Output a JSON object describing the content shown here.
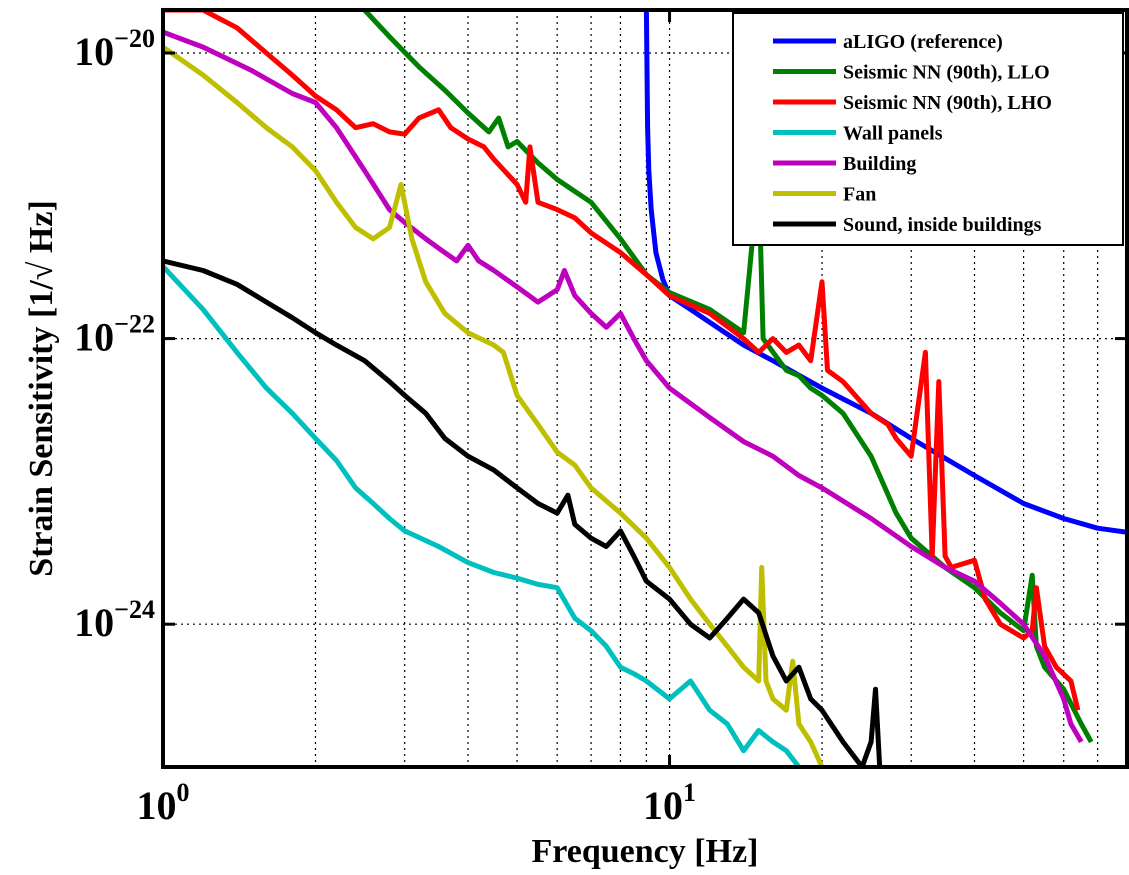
{
  "chart_data": {
    "type": "line",
    "xlabel": "Frequency [Hz]",
    "ylabel": "Strain Sensitivity [1/√ Hz]",
    "xscale": "log",
    "yscale": "log",
    "xlim": [
      1,
      80
    ],
    "ylim": [
      1e-25,
      2e-20
    ],
    "grid": true,
    "legend_position": "top-right",
    "x_ticks": [
      {
        "value": 1,
        "base": "10",
        "exp": "0"
      },
      {
        "value": 10,
        "base": "10",
        "exp": "1"
      }
    ],
    "y_ticks": [
      {
        "value": 1e-20,
        "base": "10",
        "exp": "−20"
      },
      {
        "value": 1e-22,
        "base": "10",
        "exp": "−22"
      },
      {
        "value": 1e-24,
        "base": "10",
        "exp": "−24"
      }
    ],
    "series": [
      {
        "name": "aLIGO (reference)",
        "color": "#0000ff",
        "points": [
          [
            9.0,
            2e-20
          ],
          [
            9.05,
            3e-21
          ],
          [
            9.1,
            1.5e-21
          ],
          [
            9.2,
            8e-22
          ],
          [
            9.4,
            4e-22
          ],
          [
            9.7,
            2.6e-22
          ],
          [
            10,
            2e-22
          ],
          [
            11,
            1.6e-22
          ],
          [
            12,
            1.3e-22
          ],
          [
            14,
            9e-23
          ],
          [
            16,
            7e-23
          ],
          [
            20,
            4.5e-23
          ],
          [
            25,
            3e-23
          ],
          [
            30,
            2e-23
          ],
          [
            40,
            1.1e-23
          ],
          [
            50,
            7e-24
          ],
          [
            60,
            5.5e-24
          ],
          [
            70,
            4.7e-24
          ],
          [
            80,
            4.4e-24
          ]
        ]
      },
      {
        "name": "Seismic NN (90th), LLO",
        "color": "#008000",
        "points": [
          [
            2.5,
            2e-20
          ],
          [
            2.8,
            1.3e-20
          ],
          [
            3.2,
            8e-21
          ],
          [
            3.6,
            5.5e-21
          ],
          [
            4.0,
            3.8e-21
          ],
          [
            4.4,
            2.8e-21
          ],
          [
            4.6,
            3.5e-21
          ],
          [
            4.8,
            2.2e-21
          ],
          [
            5.0,
            2.4e-21
          ],
          [
            5.5,
            1.7e-21
          ],
          [
            6.0,
            1.3e-21
          ],
          [
            7.0,
            9e-22
          ],
          [
            8.0,
            5e-22
          ],
          [
            9.0,
            2.8e-22
          ],
          [
            10,
            2.1e-22
          ],
          [
            12,
            1.6e-22
          ],
          [
            14,
            1.1e-22
          ],
          [
            15,
            1.4e-21
          ],
          [
            15.3,
            1e-22
          ],
          [
            17,
            6e-23
          ],
          [
            18,
            5.5e-23
          ],
          [
            19,
            4.5e-23
          ],
          [
            20,
            4e-23
          ],
          [
            22,
            3e-23
          ],
          [
            25,
            1.5e-23
          ],
          [
            28,
            6e-24
          ],
          [
            30,
            4e-24
          ],
          [
            35,
            2.5e-24
          ],
          [
            40,
            1.8e-24
          ],
          [
            45,
            1.2e-24
          ],
          [
            50,
            9e-25
          ],
          [
            52,
            2.2e-24
          ],
          [
            53,
            7e-25
          ],
          [
            55,
            5e-25
          ],
          [
            60,
            3.5e-25
          ],
          [
            65,
            2e-25
          ],
          [
            68,
            1.5e-25
          ]
        ]
      },
      {
        "name": "Seismic NN (90th), LHO",
        "color": "#ff0000",
        "points": [
          [
            1.0,
            2e-20
          ],
          [
            1.2,
            2e-20
          ],
          [
            1.4,
            1.5e-20
          ],
          [
            1.6,
            1e-20
          ],
          [
            1.8,
            7e-21
          ],
          [
            2.0,
            5e-21
          ],
          [
            2.2,
            4e-21
          ],
          [
            2.4,
            3e-21
          ],
          [
            2.6,
            3.2e-21
          ],
          [
            2.8,
            2.8e-21
          ],
          [
            3.0,
            2.7e-21
          ],
          [
            3.2,
            3.5e-21
          ],
          [
            3.5,
            4e-21
          ],
          [
            3.7,
            3e-21
          ],
          [
            4.0,
            2.5e-21
          ],
          [
            4.3,
            2.2e-21
          ],
          [
            4.5,
            1.8e-21
          ],
          [
            5.0,
            1.2e-21
          ],
          [
            5.2,
            9e-22
          ],
          [
            5.3,
            2.2e-21
          ],
          [
            5.5,
            9e-22
          ],
          [
            6.0,
            8e-22
          ],
          [
            6.5,
            7e-22
          ],
          [
            7.0,
            5.5e-22
          ],
          [
            8.0,
            4e-22
          ],
          [
            9.0,
            2.8e-22
          ],
          [
            10,
            2e-22
          ],
          [
            12,
            1.5e-22
          ],
          [
            14,
            1e-22
          ],
          [
            15,
            8e-23
          ],
          [
            16,
            1e-22
          ],
          [
            17,
            8e-23
          ],
          [
            18,
            9e-23
          ],
          [
            19,
            7e-23
          ],
          [
            20,
            2.5e-22
          ],
          [
            20.5,
            6e-23
          ],
          [
            22,
            5e-23
          ],
          [
            25,
            3e-23
          ],
          [
            27,
            2.5e-23
          ],
          [
            28,
            2e-23
          ],
          [
            30,
            1.5e-23
          ],
          [
            32,
            8e-23
          ],
          [
            33,
            3e-24
          ],
          [
            34,
            5e-23
          ],
          [
            35,
            3e-24
          ],
          [
            36,
            2.5e-24
          ],
          [
            40,
            2.8e-24
          ],
          [
            42,
            1.5e-24
          ],
          [
            45,
            1e-24
          ],
          [
            50,
            8e-25
          ],
          [
            52,
            9e-25
          ],
          [
            53,
            1.8e-24
          ],
          [
            55,
            7e-25
          ],
          [
            58,
            5e-25
          ],
          [
            62,
            4e-25
          ],
          [
            64,
            2.5e-25
          ]
        ]
      },
      {
        "name": "Wall panels",
        "color": "#00bfbf",
        "points": [
          [
            1.0,
            3.2e-22
          ],
          [
            1.2,
            1.6e-22
          ],
          [
            1.4,
            8e-23
          ],
          [
            1.6,
            4.5e-23
          ],
          [
            1.8,
            3e-23
          ],
          [
            2.0,
            2e-23
          ],
          [
            2.2,
            1.4e-23
          ],
          [
            2.4,
            9e-24
          ],
          [
            2.6,
            7e-24
          ],
          [
            2.8,
            5.5e-24
          ],
          [
            3.0,
            4.5e-24
          ],
          [
            3.5,
            3.5e-24
          ],
          [
            4.0,
            2.7e-24
          ],
          [
            4.5,
            2.3e-24
          ],
          [
            5.0,
            2.1e-24
          ],
          [
            5.5,
            1.9e-24
          ],
          [
            6.0,
            1.8e-24
          ],
          [
            6.5,
            1.1e-24
          ],
          [
            7.0,
            9e-25
          ],
          [
            7.5,
            7e-25
          ],
          [
            8.0,
            5e-25
          ],
          [
            8.5,
            4.5e-25
          ],
          [
            9.0,
            4e-25
          ],
          [
            10,
            3e-25
          ],
          [
            11,
            4e-25
          ],
          [
            12,
            2.5e-25
          ],
          [
            13,
            2e-25
          ],
          [
            14,
            1.3e-25
          ],
          [
            15,
            1.8e-25
          ],
          [
            16,
            1.5e-25
          ],
          [
            17,
            1.3e-25
          ],
          [
            18,
            1e-25
          ]
        ]
      },
      {
        "name": "Building",
        "color": "#bf00bf",
        "points": [
          [
            1.0,
            1.4e-20
          ],
          [
            1.2,
            1.1e-20
          ],
          [
            1.5,
            7.5e-21
          ],
          [
            1.8,
            5.2e-21
          ],
          [
            2.0,
            4.5e-21
          ],
          [
            2.2,
            3e-21
          ],
          [
            2.5,
            1.5e-21
          ],
          [
            2.8,
            8e-22
          ],
          [
            3.0,
            6.5e-22
          ],
          [
            3.3,
            5e-22
          ],
          [
            3.6,
            4e-22
          ],
          [
            3.8,
            3.5e-22
          ],
          [
            4.0,
            4.5e-22
          ],
          [
            4.2,
            3.5e-22
          ],
          [
            4.5,
            3e-22
          ],
          [
            5.0,
            2.3e-22
          ],
          [
            5.5,
            1.8e-22
          ],
          [
            6.0,
            2.2e-22
          ],
          [
            6.2,
            3e-22
          ],
          [
            6.5,
            2e-22
          ],
          [
            7.0,
            1.5e-22
          ],
          [
            7.5,
            1.2e-22
          ],
          [
            8.0,
            1.5e-22
          ],
          [
            8.5,
            1e-22
          ],
          [
            9.0,
            7e-23
          ],
          [
            10,
            4.5e-23
          ],
          [
            12,
            2.8e-23
          ],
          [
            14,
            1.9e-23
          ],
          [
            16,
            1.5e-23
          ],
          [
            18,
            1.1e-23
          ],
          [
            20,
            9e-24
          ],
          [
            25,
            5.5e-24
          ],
          [
            30,
            3.5e-24
          ],
          [
            35,
            2.5e-24
          ],
          [
            40,
            2e-24
          ],
          [
            45,
            1.4e-24
          ],
          [
            50,
            1e-24
          ],
          [
            55,
            6e-25
          ],
          [
            60,
            3e-25
          ],
          [
            62,
            2e-25
          ],
          [
            65,
            1.5e-25
          ]
        ]
      },
      {
        "name": "Fan",
        "color": "#bfbf00",
        "points": [
          [
            1.0,
            1.1e-20
          ],
          [
            1.2,
            7e-21
          ],
          [
            1.4,
            4.5e-21
          ],
          [
            1.6,
            3e-21
          ],
          [
            1.8,
            2.2e-21
          ],
          [
            2.0,
            1.5e-21
          ],
          [
            2.2,
            9e-22
          ],
          [
            2.4,
            6e-22
          ],
          [
            2.6,
            5e-22
          ],
          [
            2.8,
            6e-22
          ],
          [
            2.95,
            1.2e-21
          ],
          [
            3.1,
            5e-22
          ],
          [
            3.3,
            2.5e-22
          ],
          [
            3.6,
            1.5e-22
          ],
          [
            4.0,
            1.1e-22
          ],
          [
            4.5,
            9e-23
          ],
          [
            4.7,
            8e-23
          ],
          [
            5.0,
            4e-23
          ],
          [
            5.5,
            2.5e-23
          ],
          [
            6.0,
            1.6e-23
          ],
          [
            6.5,
            1.3e-23
          ],
          [
            7.0,
            9e-24
          ],
          [
            8.0,
            6e-24
          ],
          [
            9.0,
            4e-24
          ],
          [
            10,
            2.5e-24
          ],
          [
            11,
            1.5e-24
          ],
          [
            12,
            1e-24
          ],
          [
            13,
            7e-25
          ],
          [
            14,
            5e-25
          ],
          [
            15,
            4e-25
          ],
          [
            15.2,
            2.5e-24
          ],
          [
            15.5,
            4e-25
          ],
          [
            16,
            3e-25
          ],
          [
            17,
            2.5e-25
          ],
          [
            17.5,
            5.5e-25
          ],
          [
            18,
            2e-25
          ],
          [
            19,
            1.5e-25
          ],
          [
            20,
            1e-25
          ]
        ]
      },
      {
        "name": "Sound, inside buildings",
        "color": "#000000",
        "points": [
          [
            1.0,
            3.5e-22
          ],
          [
            1.2,
            3e-22
          ],
          [
            1.4,
            2.4e-22
          ],
          [
            1.6,
            1.8e-22
          ],
          [
            1.8,
            1.4e-22
          ],
          [
            2.0,
            1.1e-22
          ],
          [
            2.2,
            9e-23
          ],
          [
            2.5,
            7e-23
          ],
          [
            2.8,
            5e-23
          ],
          [
            3.0,
            4e-23
          ],
          [
            3.3,
            3e-23
          ],
          [
            3.6,
            2e-23
          ],
          [
            4.0,
            1.5e-23
          ],
          [
            4.5,
            1.2e-23
          ],
          [
            5.0,
            9e-24
          ],
          [
            5.5,
            7e-24
          ],
          [
            6.0,
            6e-24
          ],
          [
            6.3,
            8e-24
          ],
          [
            6.5,
            5e-24
          ],
          [
            7.0,
            4e-24
          ],
          [
            7.5,
            3.5e-24
          ],
          [
            8.0,
            4.5e-24
          ],
          [
            8.5,
            3e-24
          ],
          [
            9.0,
            2e-24
          ],
          [
            10,
            1.5e-24
          ],
          [
            11,
            1e-24
          ],
          [
            12,
            8e-25
          ],
          [
            13,
            1.1e-24
          ],
          [
            14,
            1.5e-24
          ],
          [
            15,
            1.2e-24
          ],
          [
            16,
            6e-25
          ],
          [
            17,
            4e-25
          ],
          [
            18,
            5e-25
          ],
          [
            19,
            3e-25
          ],
          [
            20,
            2.5e-25
          ],
          [
            22,
            1.5e-25
          ],
          [
            24,
            1e-25
          ],
          [
            25,
            1.5e-25
          ],
          [
            25.5,
            3.5e-25
          ],
          [
            26,
            1e-25
          ]
        ]
      }
    ]
  }
}
